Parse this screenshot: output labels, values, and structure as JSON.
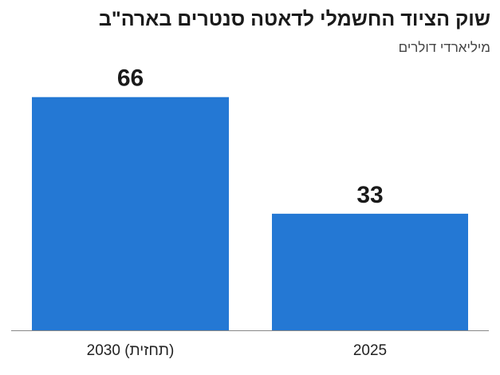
{
  "title": "שוק הציוד החשמלי לדאטה סנטרים בארה\"ב",
  "subtitle": "מיליארדי דולרים",
  "colors": {
    "bar": "#2478d4",
    "axis": "#888888"
  },
  "chart_data": {
    "type": "bar",
    "title": "שוק הציוד החשמלי לדאטה סנטרים בארה\"ב",
    "ylabel": "מיליארדי דולרים",
    "xlabel": "",
    "categories": [
      "2030 (תחזית)",
      "2025"
    ],
    "values": [
      66,
      33
    ],
    "data_labels": [
      "66",
      "33"
    ],
    "ylim": [
      0,
      70
    ],
    "grid": false,
    "legend": "none"
  }
}
